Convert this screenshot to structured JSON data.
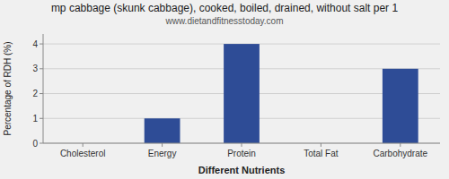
{
  "chart_data": {
    "type": "bar",
    "title": "mp cabbage (skunk cabbage), cooked, boiled, drained, without salt per 1",
    "subtitle": "www.dietandfitnesstoday.com",
    "categories": [
      "Cholesterol",
      "Energy",
      "Protein",
      "Total Fat",
      "Carbohydrate"
    ],
    "values": [
      0.0,
      1.0,
      4.0,
      0.0,
      3.0
    ],
    "color": "#2e4c96",
    "xlabel": "Different Nutrients",
    "ylabel": "Percentage of RDH (%)",
    "ylim": [
      0,
      4.4
    ],
    "yticks": [
      0,
      1,
      2,
      3,
      4
    ],
    "grid": true
  }
}
